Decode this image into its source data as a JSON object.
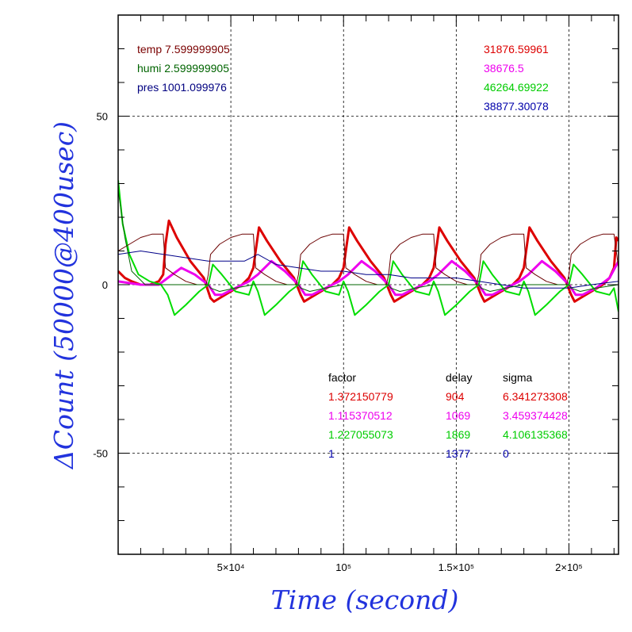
{
  "chart_data": {
    "type": "line",
    "xlabel": "Time (second)",
    "ylabel": "ΔCount (50000@400usec)",
    "xlim": [
      0,
      222000
    ],
    "ylim": [
      -80,
      80
    ],
    "x_ticks": [
      {
        "value": 50000,
        "label": "5×10⁴"
      },
      {
        "value": 100000,
        "label": "10⁵"
      },
      {
        "value": 150000,
        "label": "1.5×10⁵"
      },
      {
        "value": 200000,
        "label": "2×10⁵"
      }
    ],
    "y_ticks": [
      {
        "value": 50,
        "label": "50"
      },
      {
        "value": 0,
        "label": "0"
      },
      {
        "value": -50,
        "label": "-50"
      }
    ],
    "grid": true,
    "env_labels": [
      {
        "text": "temp 7.599999905",
        "color": "#7a0000"
      },
      {
        "text": "humi 2.599999905",
        "color": "#006400"
      },
      {
        "text": "pres 1001.099976",
        "color": "#000080"
      }
    ],
    "count_labels": [
      {
        "text": "31876.59961",
        "color": "#dd0000"
      },
      {
        "text": "38676.5",
        "color": "#ee00ee"
      },
      {
        "text": "46264.69922",
        "color": "#00cc00"
      },
      {
        "text": "38877.30078",
        "color": "#0000aa"
      }
    ],
    "table": {
      "headers": [
        "factor",
        "delay",
        "sigma"
      ],
      "rows": [
        {
          "factor": "1.372150779",
          "delay": "904",
          "sigma": "6.341273308",
          "color": "#dd0000"
        },
        {
          "factor": "1.115370512",
          "delay": "1069",
          "sigma": "3.459374428",
          "color": "#ee00ee"
        },
        {
          "factor": "1.227055073",
          "delay": "1869",
          "sigma": "4.106135368",
          "color": "#00cc00"
        },
        {
          "factor": "1",
          "delay": "1377",
          "sigma": "0",
          "color": "#0000aa"
        }
      ]
    },
    "series": [
      {
        "color": "#dd0000",
        "width": 3,
        "x": [
          0,
          3000,
          6000,
          10000,
          14000,
          18000,
          20000,
          21000,
          22500,
          26000,
          32000,
          38000,
          41000,
          42500,
          45000,
          50000,
          55000,
          58000,
          60000,
          61000,
          62500,
          66000,
          72000,
          78000,
          81000,
          82500,
          85000,
          90000,
          95000,
          98000,
          100000,
          101000,
          102500,
          106000,
          112000,
          118000,
          121000,
          122500,
          125000,
          130000,
          135000,
          138000,
          140000,
          141000,
          142500,
          146000,
          152000,
          158000,
          161000,
          162500,
          165000,
          170000,
          175000,
          178000,
          180000,
          181000,
          182500,
          186000,
          192000,
          198000,
          201000,
          202500,
          205000,
          210000,
          215000,
          218000,
          220000,
          221000,
          222000
        ],
        "y": [
          4,
          2,
          1,
          0,
          0,
          1,
          3,
          12,
          19,
          14,
          7,
          2,
          -4,
          -5,
          -4,
          -2,
          0,
          2,
          5,
          10,
          17,
          13,
          7,
          2,
          -3,
          -5,
          -4,
          -2,
          0,
          2,
          5,
          10,
          17,
          13,
          7,
          2,
          -3,
          -5,
          -4,
          -2,
          0,
          2,
          5,
          10,
          17,
          13,
          7,
          2,
          -3,
          -5,
          -4,
          -2,
          0,
          2,
          5,
          10,
          17,
          13,
          7,
          2,
          -3,
          -5,
          -4,
          -2,
          0,
          2,
          5,
          14,
          13
        ]
      },
      {
        "color": "#ee00ee",
        "width": 3,
        "x": [
          0,
          10000,
          18000,
          22000,
          28000,
          34000,
          40000,
          43000,
          46000,
          52000,
          58000,
          62000,
          68000,
          74000,
          80000,
          83000,
          86000,
          92000,
          98000,
          102000,
          108000,
          114000,
          120000,
          123000,
          126000,
          132000,
          138000,
          142000,
          148000,
          154000,
          160000,
          163000,
          166000,
          172000,
          178000,
          182000,
          188000,
          194000,
          200000,
          203000,
          206000,
          212000,
          218000,
          222000
        ],
        "y": [
          1,
          0,
          0,
          2,
          5,
          3,
          0,
          -3,
          -3,
          -1,
          1,
          3,
          7,
          4,
          0,
          -3,
          -3,
          -1,
          1,
          3,
          7,
          4,
          0,
          -3,
          -3,
          -1,
          1,
          3,
          7,
          4,
          0,
          -3,
          -3,
          -1,
          1,
          3,
          7,
          4,
          0,
          -3,
          -3,
          -1,
          2,
          7
        ]
      },
      {
        "color": "#00dd00",
        "width": 2,
        "x": [
          0,
          2000,
          5000,
          9000,
          14000,
          19000,
          22000,
          25000,
          30000,
          36000,
          40000,
          42000,
          46000,
          52000,
          58000,
          60000,
          62000,
          65000,
          70000,
          76000,
          80000,
          82000,
          86000,
          92000,
          98000,
          100000,
          102000,
          105000,
          110000,
          116000,
          120000,
          122000,
          126000,
          132000,
          138000,
          140000,
          142000,
          145000,
          150000,
          156000,
          160000,
          162000,
          166000,
          172000,
          178000,
          180000,
          182000,
          185000,
          190000,
          196000,
          200000,
          202000,
          206000,
          212000,
          218000,
          220000,
          222000
        ],
        "y": [
          31,
          18,
          9,
          3,
          1,
          0,
          -3,
          -9,
          -6,
          -2,
          0,
          6,
          3,
          -2,
          -3,
          1,
          -2,
          -9,
          -6,
          -2,
          0,
          7,
          3,
          -2,
          -3,
          1,
          -2,
          -9,
          -6,
          -2,
          0,
          7,
          3,
          -2,
          -3,
          1,
          -2,
          -9,
          -6,
          -2,
          0,
          7,
          3,
          -2,
          -3,
          1,
          -2,
          -9,
          -6,
          -2,
          0,
          6,
          3,
          -2,
          -3,
          -1,
          -8
        ]
      },
      {
        "color": "#000088",
        "width": 1,
        "x": [
          0,
          10000,
          20000,
          30000,
          40000,
          50000,
          56000,
          62000,
          70000,
          80000,
          90000,
          100000,
          110000,
          120000,
          130000,
          140000,
          150000,
          160000,
          170000,
          180000,
          190000,
          200000,
          210000,
          222000
        ],
        "y": [
          9,
          10,
          9,
          8,
          7,
          7,
          7,
          9,
          6,
          5,
          4,
          4,
          3,
          3,
          2,
          2,
          2,
          1,
          0,
          -1,
          -1,
          -1,
          0,
          1
        ]
      },
      {
        "color": "#6b0000",
        "width": 1,
        "x": [
          0,
          5000,
          10000,
          15000,
          19000,
          20000,
          21000,
          25000,
          30000,
          35000,
          39000,
          40000,
          41000,
          45000,
          50000,
          55000,
          59000,
          60000,
          61000,
          65000,
          70000,
          75000,
          79000,
          80000,
          81000,
          85000,
          90000,
          95000,
          99000,
          100000,
          101000,
          105000,
          110000,
          115000,
          119000,
          120000,
          121000,
          125000,
          130000,
          135000,
          139000,
          140000,
          141000,
          145000,
          150000,
          155000,
          159000,
          160000,
          161000,
          165000,
          170000,
          175000,
          179000,
          180000,
          181000,
          185000,
          190000,
          195000,
          199000,
          200000,
          201000,
          205000,
          210000,
          215000,
          219000,
          220000,
          222000
        ],
        "y": [
          10,
          12,
          14,
          15,
          15,
          15,
          5,
          3,
          1,
          0,
          0,
          3,
          9,
          12,
          14,
          15,
          15,
          15,
          5,
          3,
          1,
          0,
          0,
          3,
          9,
          12,
          14,
          15,
          15,
          15,
          5,
          3,
          1,
          0,
          0,
          3,
          9,
          12,
          14,
          15,
          15,
          15,
          5,
          3,
          1,
          0,
          0,
          3,
          9,
          12,
          14,
          15,
          15,
          15,
          5,
          3,
          1,
          0,
          0,
          3,
          9,
          12,
          14,
          15,
          15,
          15,
          5
        ]
      },
      {
        "color": "#006600",
        "width": 1,
        "x": [
          0,
          3000,
          6000,
          12000,
          20000,
          40000,
          41000,
          45000,
          52000,
          60000,
          80000,
          81000,
          85000,
          92000,
          100000,
          120000,
          121000,
          125000,
          132000,
          140000,
          160000,
          161000,
          165000,
          172000,
          180000,
          200000,
          201000,
          205000,
          212000,
          222000
        ],
        "y": [
          28,
          14,
          4,
          0,
          0,
          0,
          -1,
          -2,
          -1,
          0,
          0,
          -1,
          -2,
          -1,
          0,
          0,
          -1,
          -2,
          -1,
          0,
          0,
          -1,
          -2,
          -1,
          0,
          0,
          -1,
          -2,
          -1,
          0
        ]
      }
    ]
  }
}
